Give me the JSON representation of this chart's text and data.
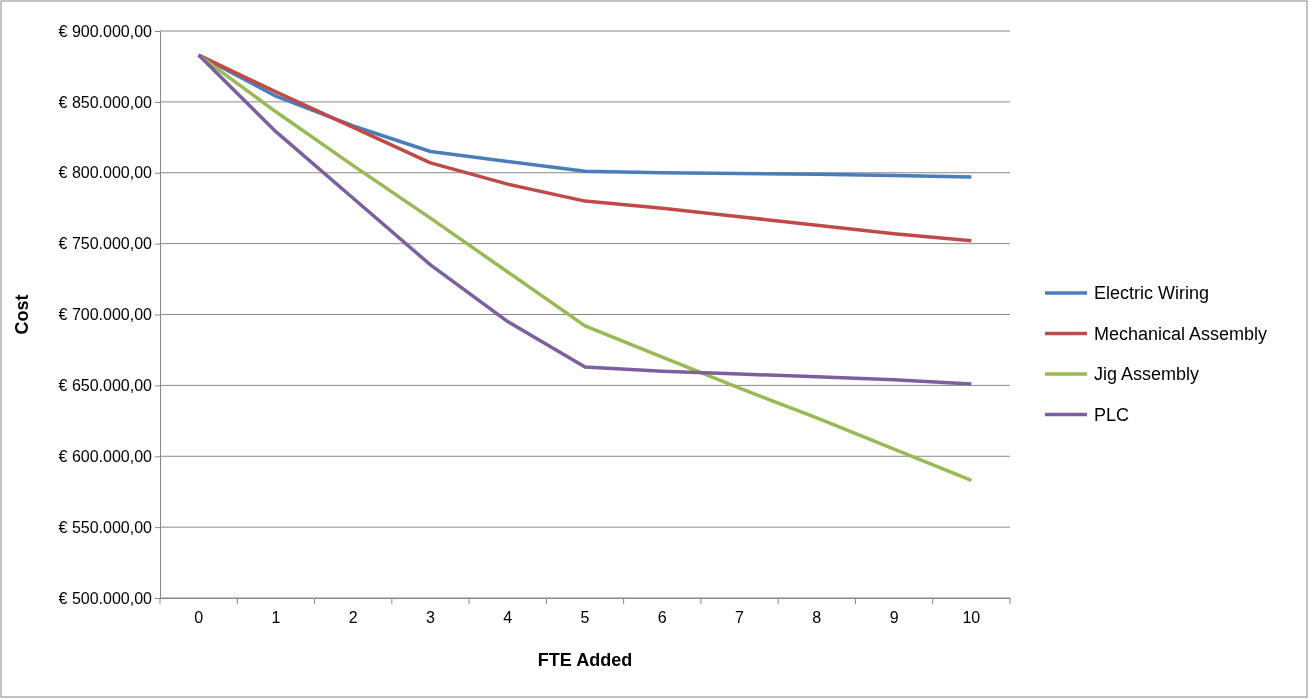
{
  "chart_data": {
    "type": "line",
    "xlabel": "FTE Added",
    "ylabel": "Cost",
    "categories": [
      "0",
      "1",
      "2",
      "3",
      "4",
      "5",
      "6",
      "7",
      "8",
      "9",
      "10"
    ],
    "series": [
      {
        "name": "Electric Wiring",
        "color": "#4a7ebb",
        "values": [
          883000,
          854000,
          833000,
          815000,
          808000,
          801000,
          800000,
          799500,
          799000,
          798000,
          797000
        ]
      },
      {
        "name": "Mechanical Assembly",
        "color": "#be4b48",
        "values": [
          883000,
          857000,
          832000,
          807000,
          792000,
          780000,
          775000,
          769000,
          763000,
          757000,
          752000
        ]
      },
      {
        "name": "Jig Assembly",
        "color": "#98b954",
        "values": [
          883000,
          843000,
          805000,
          768000,
          730000,
          692000,
          670000,
          648000,
          627000,
          605000,
          583000
        ]
      },
      {
        "name": "PLC",
        "color": "#7d5fa0",
        "values": [
          883000,
          829000,
          782000,
          735000,
          695000,
          663000,
          660000,
          658000,
          656000,
          654000,
          651000
        ]
      }
    ],
    "ylim": [
      500000,
      900000
    ],
    "yticks": [
      {
        "value": 500000,
        "label": "€ 500.000,00"
      },
      {
        "value": 550000,
        "label": "€ 550.000,00"
      },
      {
        "value": 600000,
        "label": "€ 600.000,00"
      },
      {
        "value": 650000,
        "label": "€ 650.000,00"
      },
      {
        "value": 700000,
        "label": "€ 700.000,00"
      },
      {
        "value": 750000,
        "label": "€ 750.000,00"
      },
      {
        "value": 800000,
        "label": "€ 800.000,00"
      },
      {
        "value": 850000,
        "label": "€ 850.000,00"
      },
      {
        "value": 900000,
        "label": "€ 900.000,00"
      }
    ],
    "grid": "y",
    "legend": "right",
    "marker": "none",
    "line_style": "solid"
  }
}
